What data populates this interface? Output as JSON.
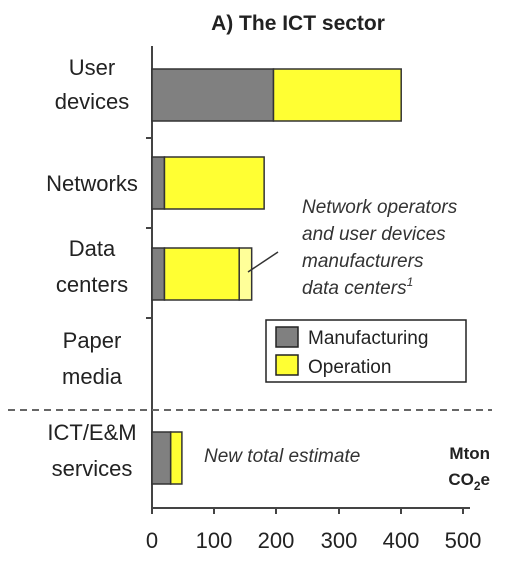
{
  "chart_data": {
    "type": "bar",
    "orientation": "horizontal",
    "stacked": true,
    "title": "A) The ICT sector",
    "categories": [
      [
        "User",
        "devices"
      ],
      [
        "Networks"
      ],
      [
        "Data",
        "centers"
      ],
      [
        "Paper",
        "media"
      ],
      [
        "ICT/E&M",
        "services"
      ]
    ],
    "series": [
      {
        "name": "Manufacturing",
        "color": "#808080",
        "values": [
          195,
          20,
          20,
          0,
          30
        ]
      },
      {
        "name": "Operation",
        "color": "#ffff33",
        "values": [
          205,
          160,
          120,
          0,
          18
        ]
      }
    ],
    "extra_segments": [
      {
        "category_index": 2,
        "start": 140,
        "end": 160,
        "color": "#ffff99"
      }
    ],
    "xlim": [
      0,
      500
    ],
    "xticks": [
      "0",
      "100",
      "200",
      "300",
      "400",
      "500"
    ],
    "unit_label": {
      "line1": "Mton",
      "main": "CO",
      "sub": "2",
      "tail": "e"
    },
    "annotations": {
      "data_centers_note": [
        "Network operators",
        "and user devices",
        "manufacturers",
        "data centers"
      ],
      "data_centers_note_sup": "1",
      "total_note": "New total estimate"
    },
    "legend_position": "right",
    "separator_before_category_index": 4
  }
}
